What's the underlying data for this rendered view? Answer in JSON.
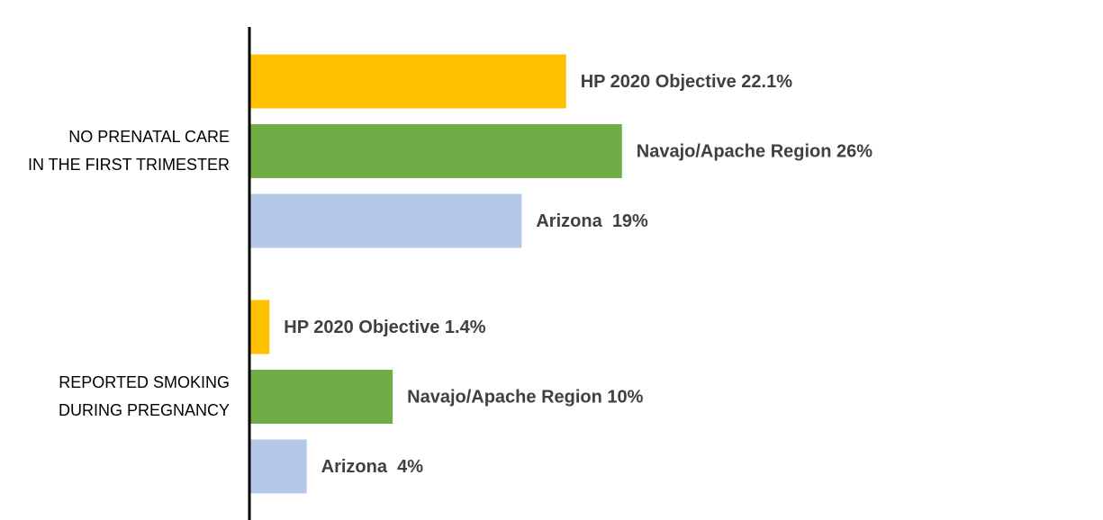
{
  "chart_data": {
    "type": "bar",
    "orientation": "horizontal",
    "categories": [
      [
        "NO PRENATAL CARE",
        "IN THE FIRST TRIMESTER"
      ],
      [
        "REPORTED SMOKING",
        "DURING PREGNANCY"
      ]
    ],
    "series": [
      {
        "color": "#FFC000",
        "values": [
          22.1,
          1.4
        ],
        "value_labels": [
          "HP 2020 Objective 22.1%",
          "HP 2020 Objective 1.4%"
        ]
      },
      {
        "color": "#70AD47",
        "values": [
          26,
          10
        ],
        "value_labels": [
          "Navajo/Apache Region 26%",
          "Navajo/Apache Region 10%"
        ]
      },
      {
        "color": "#B4C7E7",
        "values": [
          19,
          4
        ],
        "value_labels": [
          "Arizona  19%",
          "Arizona  4%"
        ]
      }
    ],
    "xlim": [
      0,
      58
    ]
  }
}
